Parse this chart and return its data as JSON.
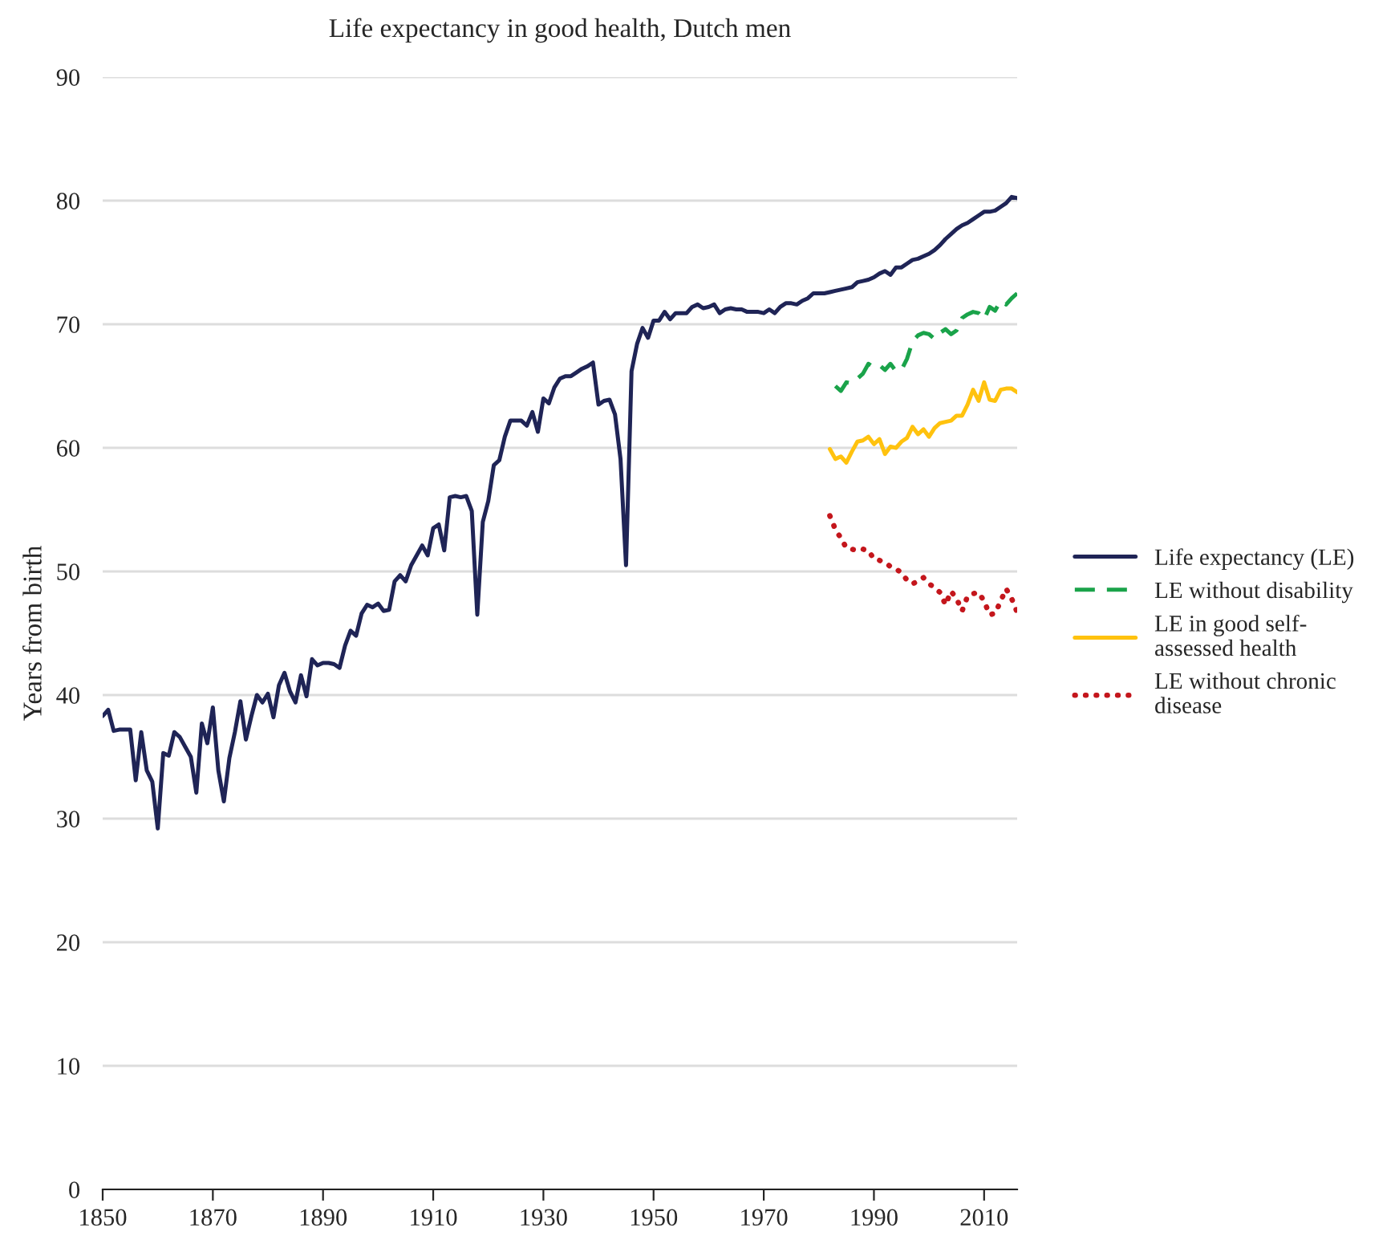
{
  "chart_data": {
    "type": "line",
    "title": "Life expectancy in good health, Dutch men",
    "ylabel": "Years from birth",
    "xlim": [
      1850,
      2016
    ],
    "xticks": [
      1850,
      1870,
      1890,
      1910,
      1930,
      1950,
      1970,
      1990,
      2010
    ],
    "ylim": [
      0,
      90
    ],
    "yticks": [
      0,
      10,
      20,
      30,
      40,
      50,
      60,
      70,
      80,
      90
    ],
    "grid": "y",
    "legend": "right",
    "series": [
      {
        "name": "Life expectancy (LE)",
        "color": "#1f2456",
        "line_style": "solid",
        "x": [
          1850,
          1851,
          1852,
          1853,
          1854,
          1855,
          1856,
          1857,
          1858,
          1859,
          1860,
          1861,
          1862,
          1863,
          1864,
          1865,
          1866,
          1867,
          1868,
          1869,
          1870,
          1871,
          1872,
          1873,
          1874,
          1875,
          1876,
          1877,
          1878,
          1879,
          1880,
          1881,
          1882,
          1883,
          1884,
          1885,
          1886,
          1887,
          1888,
          1889,
          1890,
          1891,
          1892,
          1893,
          1894,
          1895,
          1896,
          1897,
          1898,
          1899,
          1900,
          1901,
          1902,
          1903,
          1904,
          1905,
          1906,
          1907,
          1908,
          1909,
          1910,
          1911,
          1912,
          1913,
          1914,
          1915,
          1916,
          1917,
          1918,
          1919,
          1920,
          1921,
          1922,
          1923,
          1924,
          1925,
          1926,
          1927,
          1928,
          1929,
          1930,
          1931,
          1932,
          1933,
          1934,
          1935,
          1936,
          1937,
          1938,
          1939,
          1940,
          1941,
          1942,
          1943,
          1944,
          1945,
          1946,
          1947,
          1948,
          1949,
          1950,
          1951,
          1952,
          1953,
          1954,
          1955,
          1956,
          1957,
          1958,
          1959,
          1960,
          1961,
          1962,
          1963,
          1964,
          1965,
          1966,
          1967,
          1968,
          1969,
          1970,
          1971,
          1972,
          1973,
          1974,
          1975,
          1976,
          1977,
          1978,
          1979,
          1980,
          1981,
          1982,
          1983,
          1984,
          1985,
          1986,
          1987,
          1988,
          1989,
          1990,
          1991,
          1992,
          1993,
          1994,
          1995,
          1996,
          1997,
          1998,
          1999,
          2000,
          2001,
          2002,
          2003,
          2004,
          2005,
          2006,
          2007,
          2008,
          2009,
          2010,
          2011,
          2012,
          2013,
          2014,
          2015,
          2016
        ],
        "values": [
          38.3,
          38.8,
          37.1,
          37.2,
          37.2,
          37.2,
          33.1,
          37.0,
          33.9,
          33.0,
          29.2,
          35.3,
          35.1,
          37.0,
          36.6,
          35.8,
          35.0,
          32.1,
          37.7,
          36.1,
          39.0,
          33.9,
          31.4,
          34.9,
          37.0,
          39.5,
          36.4,
          38.3,
          40.0,
          39.4,
          40.1,
          38.2,
          40.8,
          41.8,
          40.3,
          39.4,
          41.6,
          39.9,
          42.9,
          42.4,
          42.6,
          42.6,
          42.5,
          42.2,
          44.0,
          45.2,
          44.8,
          46.6,
          47.3,
          47.1,
          47.4,
          46.8,
          46.9,
          49.2,
          49.7,
          49.2,
          50.5,
          51.3,
          52.1,
          51.3,
          53.5,
          53.8,
          51.7,
          56.0,
          56.1,
          56.0,
          56.1,
          54.9,
          46.5,
          54.0,
          55.7,
          58.6,
          59.0,
          60.9,
          62.2,
          62.2,
          62.2,
          61.8,
          62.9,
          61.3,
          64.0,
          63.6,
          64.9,
          65.6,
          65.8,
          65.8,
          66.1,
          66.4,
          66.6,
          66.9,
          63.5,
          63.8,
          63.9,
          62.7,
          59.1,
          50.5,
          66.2,
          68.4,
          69.7,
          68.9,
          70.3,
          70.3,
          71.0,
          70.4,
          70.9,
          70.9,
          70.9,
          71.4,
          71.6,
          71.3,
          71.4,
          71.6,
          70.9,
          71.2,
          71.3,
          71.2,
          71.2,
          71.0,
          71.0,
          71.0,
          70.9,
          71.2,
          70.9,
          71.4,
          71.7,
          71.7,
          71.6,
          71.9,
          72.1,
          72.5,
          72.5,
          72.5,
          72.6,
          72.7,
          72.8,
          72.9,
          73.0,
          73.4,
          73.5,
          73.6,
          73.8,
          74.1,
          74.3,
          74.0,
          74.6,
          74.6,
          74.9,
          75.2,
          75.3,
          75.5,
          75.7,
          76.0,
          76.4,
          76.9,
          77.3,
          77.7,
          78.0,
          78.2,
          78.5,
          78.8,
          79.1,
          79.1,
          79.2,
          79.5,
          79.8,
          80.3,
          80.2
        ]
      },
      {
        "name": "LE without disability",
        "color": "#1aa34a",
        "line_style": "dashed",
        "x": [
          1983,
          1984,
          1985,
          1986,
          1987,
          1988,
          1989,
          1990,
          1991,
          1992,
          1993,
          1994,
          1995,
          1996,
          1997,
          1998,
          1999,
          2000,
          2001,
          2002,
          2003,
          2004,
          2005,
          2006,
          2007,
          2008,
          2009,
          2010,
          2011,
          2012,
          2013,
          2014,
          2015,
          2016
        ],
        "values": [
          65.0,
          64.6,
          65.3,
          65.2,
          65.6,
          66.0,
          66.8,
          66.5,
          66.7,
          66.3,
          66.8,
          66.2,
          66.3,
          67.2,
          68.6,
          69.1,
          69.3,
          69.2,
          68.8,
          69.3,
          69.6,
          69.2,
          69.5,
          70.5,
          70.8,
          71.0,
          70.9,
          70.4,
          71.4,
          71.1,
          71.9,
          71.6,
          72.1,
          72.5
        ]
      },
      {
        "name": "LE in good self-\nassessed health",
        "color": "#ffc20e",
        "line_style": "solid",
        "x": [
          1982,
          1983,
          1984,
          1985,
          1986,
          1987,
          1988,
          1989,
          1990,
          1991,
          1992,
          1993,
          1994,
          1995,
          1996,
          1997,
          1998,
          1999,
          2000,
          2001,
          2002,
          2003,
          2004,
          2005,
          2006,
          2007,
          2008,
          2009,
          2010,
          2011,
          2012,
          2013,
          2014,
          2015,
          2016
        ],
        "values": [
          59.9,
          59.1,
          59.3,
          58.8,
          59.7,
          60.5,
          60.6,
          60.9,
          60.3,
          60.7,
          59.5,
          60.1,
          60.0,
          60.5,
          60.8,
          61.7,
          61.1,
          61.5,
          60.9,
          61.6,
          62.0,
          62.1,
          62.2,
          62.6,
          62.6,
          63.5,
          64.7,
          63.8,
          65.3,
          63.9,
          63.8,
          64.7,
          64.8,
          64.8,
          64.5
        ]
      },
      {
        "name": "LE without chronic\ndisease",
        "color": "#c4161c",
        "line_style": "dotted",
        "x": [
          1982,
          1983,
          1984,
          1985,
          1986,
          1987,
          1988,
          1989,
          1990,
          1991,
          1992,
          1993,
          1994,
          1995,
          1996,
          1997,
          1998,
          1999,
          2000,
          2001,
          2002,
          2003,
          2004,
          2005,
          2006,
          2007,
          2008,
          2009,
          2010,
          2011,
          2012,
          2013,
          2014,
          2015,
          2016
        ],
        "values": [
          54.5,
          53.4,
          52.7,
          51.9,
          51.8,
          51.7,
          51.8,
          51.7,
          51.0,
          50.9,
          50.7,
          50.4,
          50.2,
          49.9,
          49.3,
          49.0,
          49.2,
          49.5,
          49.0,
          48.7,
          48.3,
          47.3,
          48.4,
          47.8,
          46.8,
          48.0,
          48.2,
          48.3,
          47.6,
          46.5,
          46.6,
          47.6,
          48.6,
          47.8,
          46.7
        ]
      }
    ]
  }
}
